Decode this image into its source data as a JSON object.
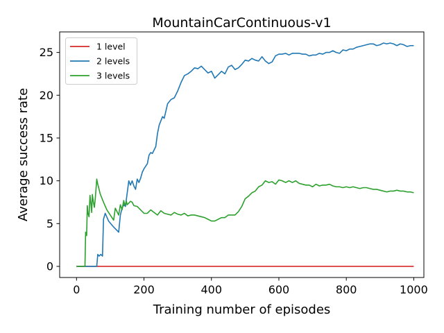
{
  "chart_data": {
    "type": "line",
    "title": "MountainCarContinuous-v1",
    "xlabel": "Training number of episodes",
    "ylabel": "Average success rate",
    "xlim": [
      -50,
      1030
    ],
    "ylim": [
      -1.3,
      27.4
    ],
    "xticks": [
      0,
      200,
      400,
      600,
      800,
      1000
    ],
    "yticks": [
      0,
      5,
      10,
      15,
      20,
      25
    ],
    "grid": false,
    "legend_position": "top-left",
    "series": [
      {
        "name": "1 level",
        "color": "#d62728",
        "x": [
          0,
          1000
        ],
        "y": [
          0,
          0
        ]
      },
      {
        "name": "2 levels",
        "color": "#1f77b4",
        "x": [
          0,
          60,
          63,
          67,
          72,
          77,
          80,
          85,
          95,
          110,
          125,
          130,
          135,
          140,
          145,
          150,
          155,
          160,
          165,
          170,
          175,
          180,
          185,
          190,
          195,
          200,
          210,
          215,
          220,
          225,
          230,
          235,
          240,
          245,
          250,
          255,
          260,
          270,
          280,
          290,
          300,
          310,
          320,
          330,
          340,
          350,
          360,
          370,
          375,
          380,
          390,
          400,
          410,
          420,
          430,
          440,
          450,
          460,
          470,
          480,
          490,
          500,
          510,
          520,
          530,
          540,
          550,
          560,
          570,
          580,
          590,
          600,
          610,
          620,
          630,
          640,
          650,
          660,
          670,
          680,
          690,
          700,
          710,
          720,
          730,
          740,
          750,
          760,
          770,
          780,
          790,
          800,
          810,
          820,
          830,
          840,
          850,
          860,
          870,
          880,
          890,
          900,
          910,
          920,
          930,
          940,
          950,
          960,
          970,
          980,
          990,
          1000
        ],
        "y": [
          0,
          0,
          1.4,
          1.2,
          1.4,
          1.2,
          5.5,
          6.2,
          5.3,
          4.6,
          4.0,
          6.0,
          6.8,
          7.2,
          7.0,
          8.5,
          10.0,
          9.5,
          10.0,
          9.4,
          9.0,
          10.2,
          9.8,
          10.3,
          11.0,
          11.4,
          12.0,
          13.0,
          13.3,
          13.2,
          13.6,
          14.0,
          15.5,
          16.5,
          17.0,
          17.5,
          17.3,
          19.0,
          19.5,
          19.7,
          20.5,
          21.5,
          22.3,
          22.5,
          22.8,
          23.2,
          23.1,
          23.4,
          23.2,
          23.0,
          22.6,
          22.8,
          22.0,
          22.4,
          22.8,
          22.5,
          23.3,
          23.5,
          23.0,
          23.2,
          23.6,
          24.1,
          24.0,
          24.3,
          24.1,
          24.0,
          24.5,
          24.0,
          23.7,
          23.9,
          24.6,
          24.8,
          24.8,
          24.9,
          24.7,
          24.9,
          24.9,
          24.9,
          24.8,
          24.8,
          24.6,
          24.7,
          24.7,
          24.9,
          24.8,
          25.0,
          25.0,
          25.2,
          25.0,
          24.9,
          25.3,
          25.2,
          25.4,
          25.4,
          25.6,
          25.7,
          25.8,
          25.9,
          26.0,
          26.0,
          25.8,
          25.9,
          26.1,
          26.0,
          26.1,
          26.0,
          25.8,
          26.0,
          25.9,
          25.7,
          25.8,
          25.8
        ]
      },
      {
        "name": "3 levels",
        "color": "#2ca02c",
        "x": [
          0,
          25,
          27,
          30,
          32,
          34,
          37,
          40,
          43,
          45,
          47,
          50,
          53,
          56,
          60,
          63,
          65,
          70,
          80,
          90,
          100,
          110,
          115,
          120,
          125,
          130,
          135,
          140,
          143,
          148,
          150,
          155,
          160,
          165,
          170,
          180,
          190,
          200,
          210,
          220,
          230,
          240,
          250,
          260,
          270,
          280,
          290,
          300,
          310,
          320,
          330,
          340,
          350,
          360,
          370,
          380,
          390,
          400,
          410,
          420,
          430,
          440,
          450,
          460,
          470,
          480,
          490,
          500,
          510,
          520,
          530,
          540,
          550,
          560,
          570,
          580,
          590,
          600,
          610,
          620,
          630,
          640,
          650,
          660,
          670,
          680,
          690,
          700,
          710,
          720,
          730,
          740,
          750,
          760,
          770,
          780,
          790,
          800,
          810,
          820,
          830,
          840,
          850,
          860,
          870,
          880,
          890,
          900,
          910,
          920,
          930,
          940,
          950,
          960,
          970,
          980,
          990,
          1000
        ],
        "y": [
          0,
          0,
          4.0,
          3.6,
          7.1,
          6.2,
          5.8,
          8.3,
          7.2,
          6.3,
          8.4,
          7.5,
          6.9,
          8.1,
          10.2,
          9.6,
          9.3,
          8.5,
          7.5,
          6.6,
          6.0,
          5.4,
          6.8,
          6.4,
          6.0,
          7.2,
          6.6,
          7.7,
          7.1,
          7.6,
          7.2,
          7.4,
          7.6,
          7.5,
          7.1,
          7.0,
          6.6,
          6.2,
          6.2,
          6.6,
          6.3,
          6.0,
          6.5,
          6.2,
          6.1,
          6.0,
          6.3,
          6.1,
          6.0,
          6.2,
          5.9,
          6.0,
          6.0,
          5.9,
          5.8,
          5.7,
          5.5,
          5.3,
          5.3,
          5.5,
          5.7,
          5.7,
          6.0,
          6.0,
          6.0,
          6.4,
          7.0,
          7.9,
          8.2,
          8.6,
          8.8,
          9.3,
          9.5,
          10.0,
          9.8,
          9.9,
          9.6,
          10.1,
          10.0,
          9.8,
          10.0,
          9.8,
          10.0,
          9.7,
          9.6,
          9.5,
          9.5,
          9.3,
          9.6,
          9.4,
          9.5,
          9.5,
          9.6,
          9.4,
          9.3,
          9.3,
          9.2,
          9.3,
          9.2,
          9.3,
          9.2,
          9.1,
          9.2,
          9.2,
          9.1,
          9.0,
          9.0,
          8.9,
          8.8,
          8.7,
          8.8,
          8.8,
          8.9,
          8.8,
          8.8,
          8.7,
          8.7,
          8.6
        ]
      }
    ]
  }
}
